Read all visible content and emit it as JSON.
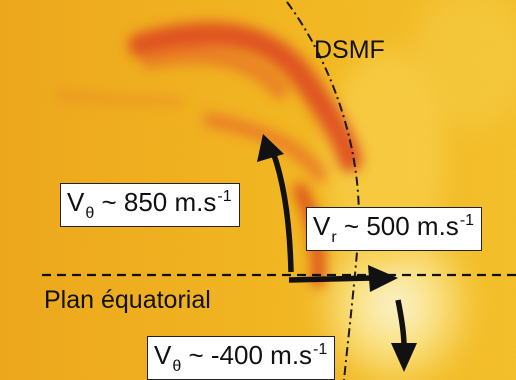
{
  "figure": {
    "region_label": "DSMF",
    "plane_label": "Plan équatorial",
    "annotations": [
      {
        "symbol": "V",
        "subscript": "θ",
        "relation": " ~ ",
        "value": "850",
        "unit": " m.s",
        "exponent": "-1"
      },
      {
        "symbol": "V",
        "subscript": "r",
        "relation": " ~ ",
        "value": "500",
        "unit": " m.s",
        "exponent": "-1"
      },
      {
        "symbol": "V",
        "subscript": "θ",
        "relation": " ~ ",
        "value": "-400",
        "unit": " m.s",
        "exponent": "-1"
      }
    ]
  },
  "colors": {
    "background": "#f3b51d",
    "emission": "#e0441c",
    "bright": "#fff2a8",
    "ink": "#111111"
  }
}
